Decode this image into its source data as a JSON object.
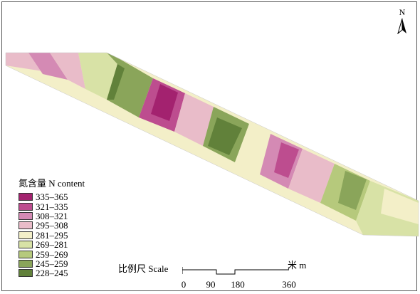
{
  "map": {
    "north_label": "N",
    "legend": {
      "title": "氮含量 N content",
      "classes": [
        {
          "label": "335–365",
          "color": "#a3226f"
        },
        {
          "label": "321–335",
          "color": "#bd4d8f"
        },
        {
          "label": "308–321",
          "color": "#d48ab4"
        },
        {
          "label": "295–308",
          "color": "#e9bcc9"
        },
        {
          "label": "281–295",
          "color": "#f3efc8"
        },
        {
          "label": "269–281",
          "color": "#d8e2a6"
        },
        {
          "label": "259–269",
          "color": "#b6c97c"
        },
        {
          "label": "245–259",
          "color": "#8aa55a"
        },
        {
          "label": "228–245",
          "color": "#61813a"
        }
      ]
    },
    "scale": {
      "title": "比例尺 Scale",
      "unit": "米 m",
      "ticks": [
        "0",
        "90",
        "180",
        "360"
      ]
    }
  }
}
